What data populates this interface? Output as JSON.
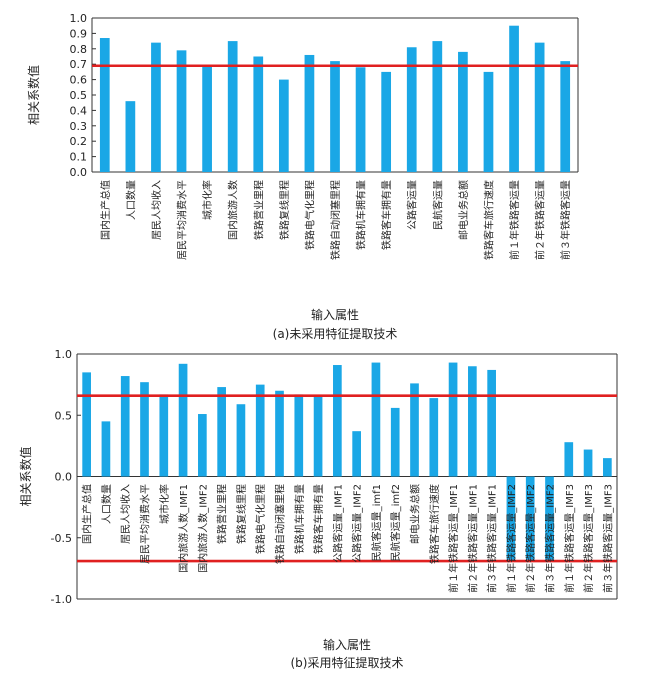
{
  "chart_data": [
    {
      "type": "bar",
      "caption": "(a)未采用特征提取技术",
      "xlabel": "输入属性",
      "ylabel": "相关系数值",
      "ylim": [
        0,
        1.0
      ],
      "yticks": [
        "1.0",
        "0.9",
        "0.8",
        "0.7",
        "0.6",
        "0.5",
        "0.4",
        "0.3",
        "0.2",
        "0.1",
        "0.0"
      ],
      "threshold": 0.69,
      "bar_color": "#1aa7e6",
      "threshold_color": "#e02020",
      "categories": [
        "国内生产总值",
        "人口数量",
        "居民人均收入",
        "居民平均消费水平",
        "城市化率",
        "国内旅游人数",
        "铁路营业里程",
        "铁路复线里程",
        "铁路电气化里程",
        "铁路自动闭塞里程",
        "铁路机车拥有量",
        "铁路客车拥有量",
        "公路客运量",
        "民航客运量",
        "邮电业务总额",
        "铁路客车旅行速度",
        "前１年铁路客运量",
        "前２年铁路客运量",
        "前３年铁路客运量"
      ],
      "values": [
        0.87,
        0.46,
        0.84,
        0.79,
        0.69,
        0.85,
        0.75,
        0.6,
        0.76,
        0.72,
        0.68,
        0.65,
        0.81,
        0.85,
        0.78,
        0.65,
        0.95,
        0.84,
        0.72
      ]
    },
    {
      "type": "bar",
      "caption": "(b)采用特征提取技术",
      "xlabel": "输入属性",
      "ylabel": "相关系数值",
      "ylim": [
        -1.0,
        1.0
      ],
      "yticks": [
        "1.0",
        "0.5",
        "0.0",
        "-0.5",
        "-1.0"
      ],
      "thresholds": [
        0.66,
        -0.69
      ],
      "bar_color": "#1aa7e6",
      "threshold_color": "#e02020",
      "categories": [
        "国内生产总值",
        "人口数量",
        "居民人均收入",
        "居民平均消费水平",
        "城市化率",
        "国内旅游人数_IMF1",
        "国内旅游人数_IMF2",
        "铁路营业里程",
        "铁路复线里程",
        "铁路电气化里程",
        "铁路自动闭塞里程",
        "铁路机车拥有量",
        "铁路客车拥有量",
        "公路客运量_IMF1",
        "公路客运量_IMF2",
        "民航客运量_imf1",
        "民航客运量_imf2",
        "邮电业务总额",
        "铁路客车旅行速度",
        "前１年铁路客运量_IMF1",
        "前２年铁路客运量_IMF1",
        "前３年铁路客运量_IMF1",
        "前１年铁路客运量_IMF2",
        "前２年铁路客运量_IMF2",
        "前３年铁路客运量_IMF2",
        "前１年铁路客运量_IMF3",
        "前２年铁路客运量_IMF3",
        "前３年铁路客运量_IMF3"
      ],
      "values": [
        0.85,
        0.45,
        0.82,
        0.77,
        0.67,
        0.92,
        0.51,
        0.73,
        0.59,
        0.75,
        0.7,
        0.67,
        0.65,
        0.91,
        0.37,
        0.93,
        0.56,
        0.76,
        0.64,
        0.93,
        0.9,
        0.87,
        -0.69,
        -0.69,
        -0.69,
        0.28,
        0.22,
        0.15
      ]
    }
  ]
}
